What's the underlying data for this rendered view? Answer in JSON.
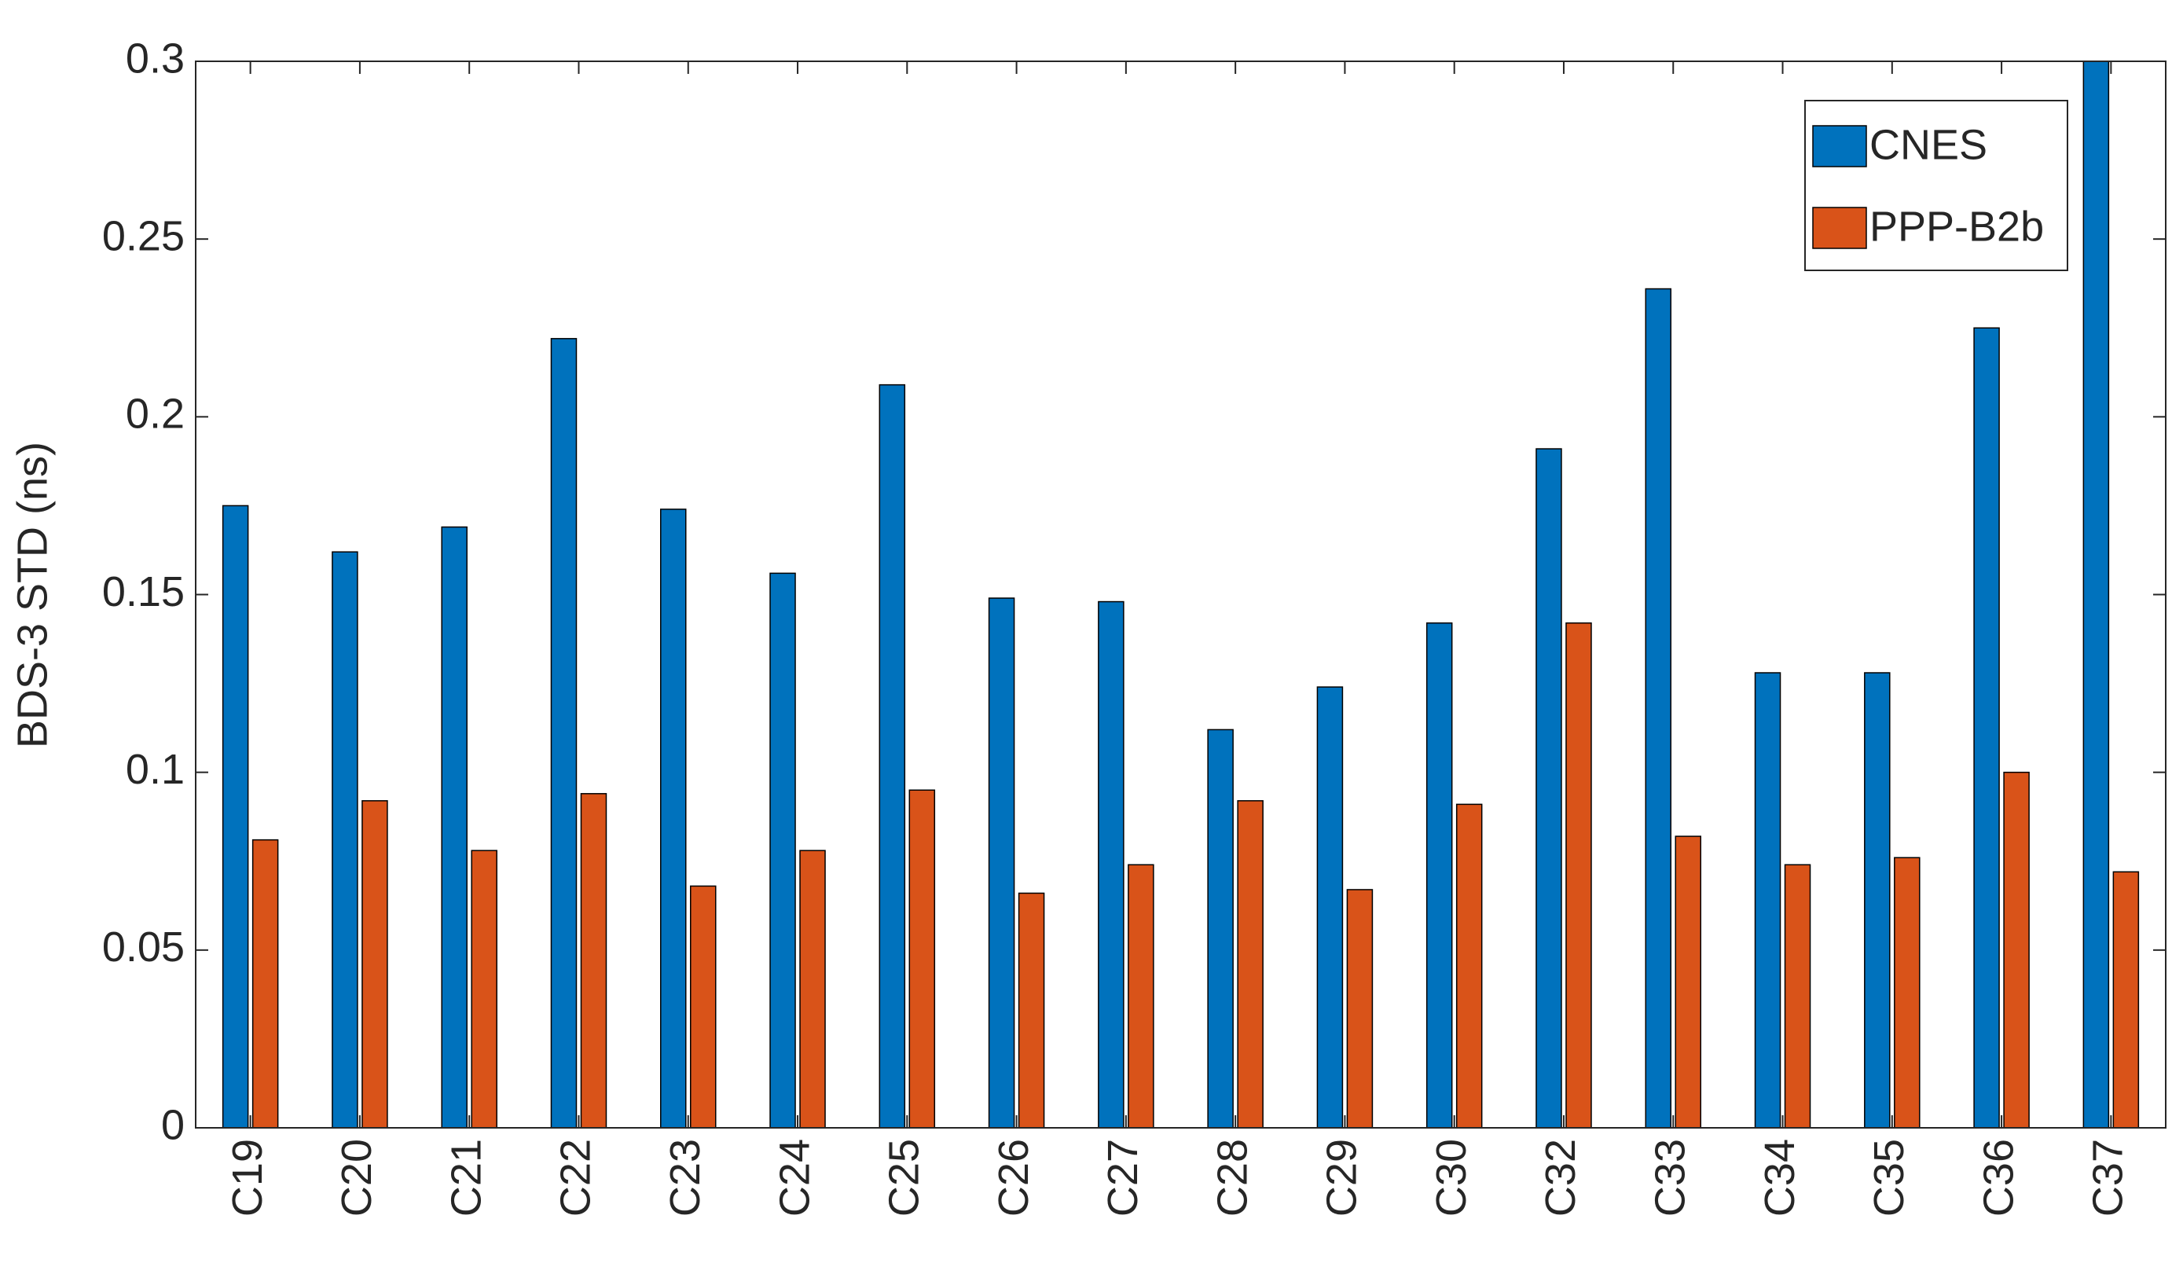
{
  "chart_data": {
    "type": "bar",
    "y_label": "BDS-3 STD (ns)",
    "categories": [
      "C19",
      "C20",
      "C21",
      "C22",
      "C23",
      "C24",
      "C25",
      "C26",
      "C27",
      "C28",
      "C29",
      "C30",
      "C32",
      "C33",
      "C34",
      "C35",
      "C36",
      "C37"
    ],
    "series": [
      {
        "name": "CNES",
        "color": "#0072bd",
        "values": [
          0.175,
          0.162,
          0.169,
          0.222,
          0.174,
          0.156,
          0.209,
          0.149,
          0.148,
          0.112,
          0.124,
          0.142,
          0.191,
          0.236,
          0.128,
          0.128,
          0.225,
          0.3
        ]
      },
      {
        "name": "PPP-B2b",
        "color": "#d95319",
        "values": [
          0.081,
          0.092,
          0.078,
          0.094,
          0.068,
          0.078,
          0.095,
          0.066,
          0.074,
          0.092,
          0.067,
          0.091,
          0.142,
          0.082,
          0.074,
          0.076,
          0.1,
          0.072
        ]
      }
    ],
    "ylim": [
      0,
      0.3
    ],
    "yticks": [
      0,
      0.05,
      0.1,
      0.15,
      0.2,
      0.25,
      0.3
    ],
    "legend": "top-right"
  }
}
